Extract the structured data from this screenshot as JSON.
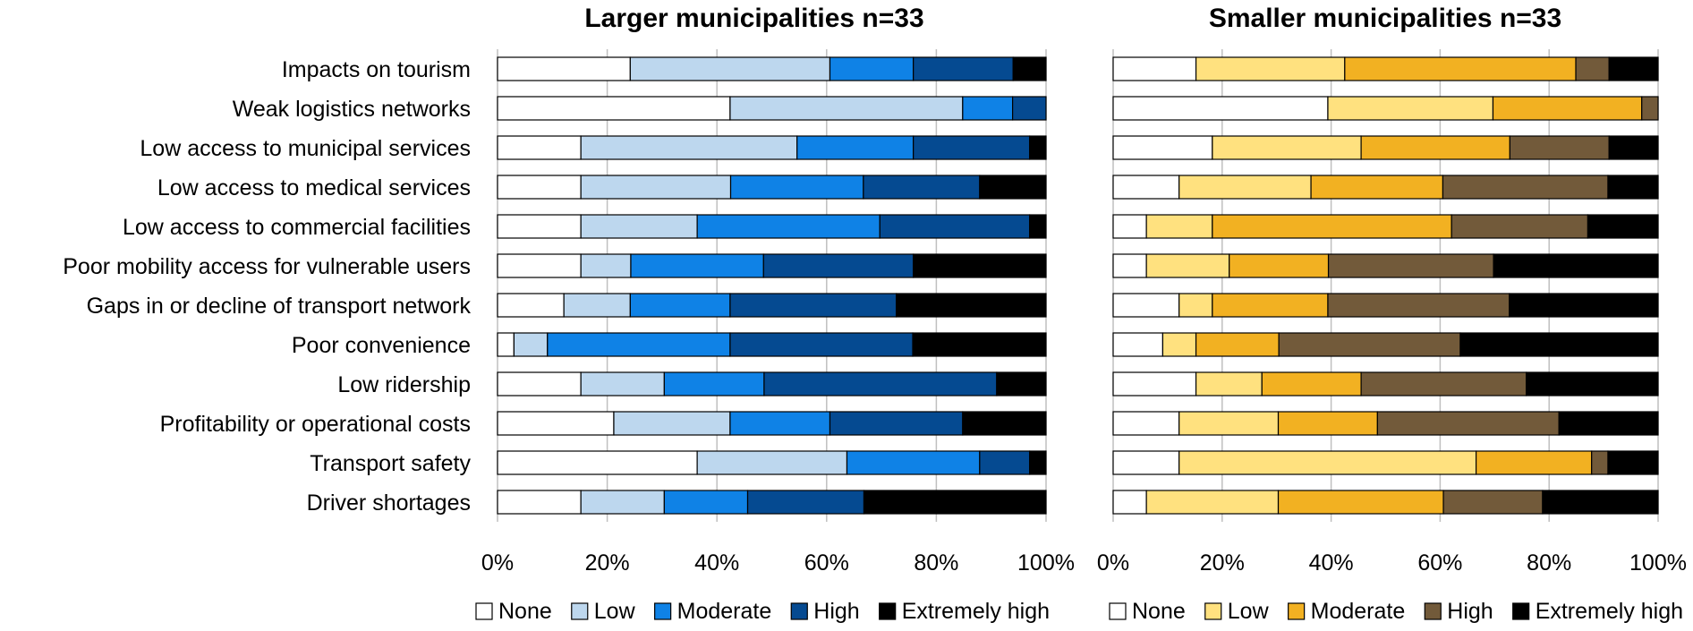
{
  "chart_data": [
    {
      "type": "bar",
      "orientation": "horizontal",
      "stacked": "percent",
      "title": "Larger municipalities n=33",
      "categories": [
        "Impacts on tourism",
        "Weak logistics networks",
        "Low access to municipal services",
        "Low access to medical services",
        "Low access to commercial facilities",
        "Poor mobility access for vulnerable users",
        "Gaps in or decline of transport network",
        "Poor convenience",
        "Low ridership",
        "Profitability or operational costs",
        "Transport safety",
        "Driver shortages"
      ],
      "series": [
        {
          "name": "None",
          "color": "#ffffff",
          "values": [
            24.2,
            42.4,
            15.2,
            15.2,
            15.2,
            15.2,
            12.1,
            3.0,
            15.2,
            21.2,
            36.4,
            15.2
          ]
        },
        {
          "name": "Low",
          "color": "#bdd7ee",
          "values": [
            36.4,
            42.4,
            39.4,
            27.3,
            21.2,
            9.1,
            12.1,
            6.1,
            15.2,
            21.2,
            27.3,
            15.2
          ]
        },
        {
          "name": "Moderate",
          "color": "#0f82e6",
          "values": [
            15.2,
            9.1,
            21.2,
            24.2,
            33.3,
            24.2,
            18.2,
            33.3,
            18.2,
            18.2,
            24.2,
            15.2
          ]
        },
        {
          "name": "High",
          "color": "#054a91",
          "values": [
            18.2,
            6.1,
            21.2,
            21.2,
            27.3,
            27.3,
            30.3,
            33.3,
            42.4,
            24.2,
            9.1,
            21.2
          ]
        },
        {
          "name": "Extremely high",
          "color": "#000000",
          "values": [
            6.0,
            0.0,
            3.0,
            12.1,
            3.0,
            24.2,
            27.3,
            24.3,
            9.0,
            15.2,
            3.0,
            33.2
          ]
        }
      ],
      "xlim": [
        0,
        100
      ],
      "xticks": [
        "0%",
        "20%",
        "40%",
        "60%",
        "80%",
        "100%"
      ],
      "grid": true,
      "legend": "bottom"
    },
    {
      "type": "bar",
      "orientation": "horizontal",
      "stacked": "percent",
      "title": "Smaller municipalities n=33",
      "categories": [
        "Impacts on tourism",
        "Weak logistics networks",
        "Low access to municipal services",
        "Low access to medical services",
        "Low access to commercial facilities",
        "Poor mobility access for vulnerable users",
        "Gaps in or decline of transport network",
        "Poor convenience",
        "Low ridership",
        "Profitability or operational costs",
        "Transport safety",
        "Driver shortages"
      ],
      "series": [
        {
          "name": "None",
          "color": "#ffffff",
          "values": [
            15.2,
            39.4,
            18.2,
            12.1,
            6.1,
            6.1,
            12.1,
            9.1,
            15.2,
            12.1,
            12.1,
            6.1
          ]
        },
        {
          "name": "Low",
          "color": "#ffe17f",
          "values": [
            27.3,
            30.3,
            27.3,
            24.2,
            12.1,
            15.2,
            6.1,
            6.1,
            12.1,
            18.2,
            54.5,
            24.2
          ]
        },
        {
          "name": "Moderate",
          "color": "#f2b122",
          "values": [
            42.4,
            27.3,
            27.3,
            24.2,
            43.9,
            18.2,
            21.2,
            15.2,
            18.2,
            18.2,
            21.2,
            30.3
          ]
        },
        {
          "name": "High",
          "color": "#725a3a",
          "values": [
            6.1,
            3.0,
            18.2,
            30.3,
            25.0,
            30.3,
            33.3,
            33.3,
            30.3,
            33.3,
            3.0,
            18.2
          ]
        },
        {
          "name": "Extremely high",
          "color": "#000000",
          "values": [
            9.0,
            0.0,
            9.0,
            9.2,
            12.9,
            30.2,
            27.3,
            36.3,
            24.2,
            18.2,
            9.2,
            21.2
          ]
        }
      ],
      "xlim": [
        0,
        100
      ],
      "xticks": [
        "0%",
        "20%",
        "40%",
        "60%",
        "80%",
        "100%"
      ],
      "grid": true,
      "legend": "bottom"
    }
  ]
}
